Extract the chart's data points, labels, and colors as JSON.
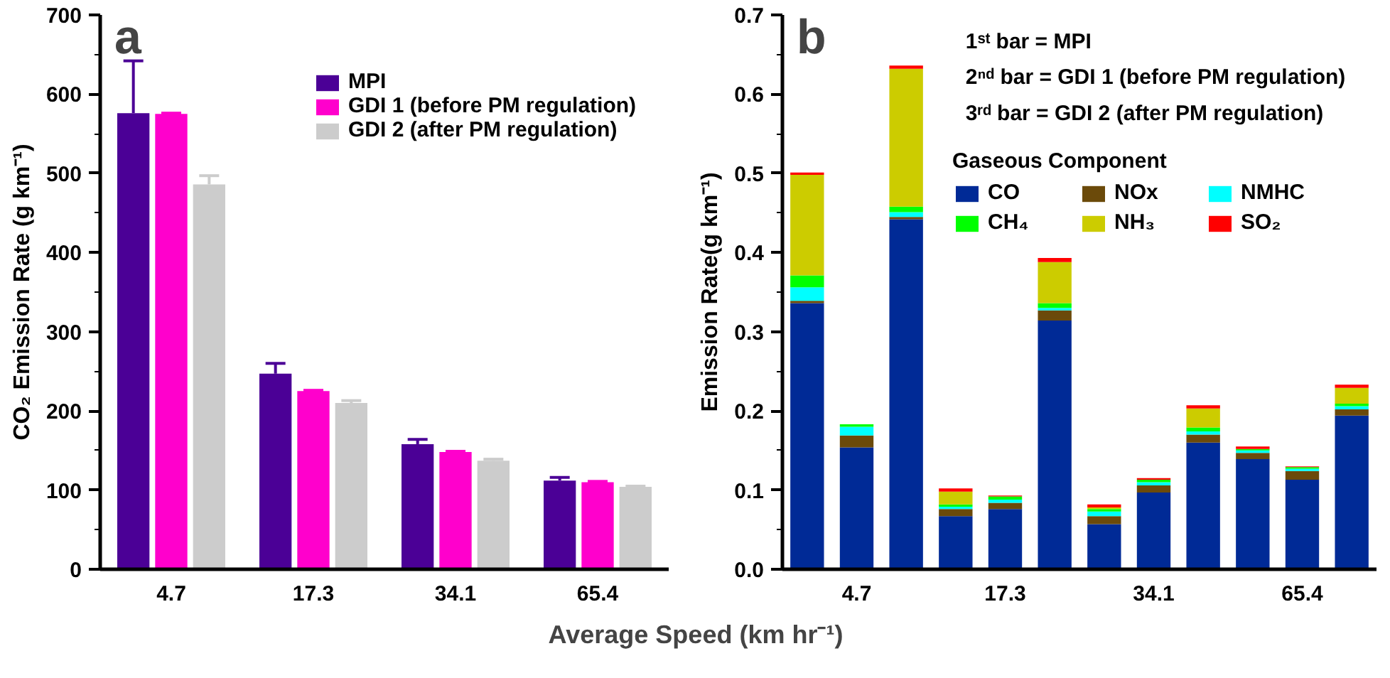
{
  "chart_data": [
    {
      "type": "bar",
      "title": "a",
      "xlabel": "Average Speed (km hr⁻¹)",
      "ylabel": "CO₂ Emission Rate (g km⁻¹)",
      "categories": [
        "4.7",
        "17.3",
        "34.1",
        "65.4"
      ],
      "series": [
        {
          "name": "MPI",
          "color": "#4b0096",
          "values": [
            576,
            247,
            158,
            112
          ],
          "errors": [
            [
              576,
              642
            ],
            [
              247,
              260
            ],
            [
              158,
              164
            ],
            [
              112,
              116
            ]
          ]
        },
        {
          "name": "GDI 1 (before PM regulation)",
          "color": "#ff00cc",
          "values": [
            575,
            225,
            148,
            110
          ],
          "errors": [
            [
              575,
              576
            ],
            [
              225,
              226
            ],
            [
              148,
              149
            ],
            [
              110,
              111
            ]
          ]
        },
        {
          "name": "GDI 2 (after PM regulation)",
          "color": "#cccccc",
          "values": [
            486,
            210,
            137,
            104
          ],
          "errors": [
            [
              486,
              497
            ],
            [
              210,
              213
            ],
            [
              137,
              139
            ],
            [
              104,
              105
            ]
          ]
        }
      ],
      "ylim": [
        0,
        700
      ],
      "yticks": [
        0,
        100,
        200,
        300,
        400,
        500,
        600,
        700
      ],
      "grid": false,
      "legend": "top right"
    },
    {
      "type": "bar",
      "stacked": true,
      "title": "b",
      "ylabel": "Emission Rate(g km⁻¹)",
      "legend_title": "Gaseous Component",
      "annotations": [
        "1ˢᵗ bar = MPI",
        "2ⁿᵈ bar = GDI 1 (before PM regulation)",
        "3ʳᵈ bar = GDI 2 (after PM regulation)"
      ],
      "categories": [
        null,
        "4.7",
        null,
        null,
        "17.3",
        null,
        null,
        "34.1",
        null,
        null,
        "65.4",
        null
      ],
      "series": [
        {
          "name": "CO",
          "color": "#002a96",
          "values": [
            0.336,
            0.154,
            0.442,
            0.067,
            0.076,
            0.314,
            0.057,
            0.097,
            0.16,
            0.139,
            0.113,
            0.194
          ]
        },
        {
          "name": "NOx",
          "color": "#6b4a0a",
          "values": [
            0.003,
            0.015,
            0.003,
            0.009,
            0.008,
            0.013,
            0.01,
            0.009,
            0.01,
            0.008,
            0.011,
            0.008
          ]
        },
        {
          "name": "NMHC",
          "color": "#00ffff",
          "values": [
            0.017,
            0.011,
            0.006,
            0.003,
            0.004,
            0.003,
            0.006,
            0.004,
            0.004,
            0.003,
            0.003,
            0.004
          ]
        },
        {
          "name": "CH₄",
          "color": "#00ff00",
          "values": [
            0.015,
            0.003,
            0.007,
            0.003,
            0.004,
            0.006,
            0.003,
            0.003,
            0.005,
            0.002,
            0.002,
            0.003
          ]
        },
        {
          "name": "NH₃",
          "color": "#cccc00",
          "values": [
            0.127,
            0,
            0.174,
            0.016,
            0,
            0.052,
            0.002,
            0,
            0.024,
            0,
            0,
            0.02
          ]
        },
        {
          "name": "SO₂",
          "color": "#ff0000",
          "values": [
            0.003,
            0,
            0.004,
            0.004,
            0.001,
            0.005,
            0.004,
            0.002,
            0.004,
            0.003,
            0.001,
            0.004
          ]
        }
      ],
      "ylim": [
        0,
        0.7
      ],
      "yticks": [
        {
          "value": 0,
          "label": "0.0"
        },
        0.1,
        0.2,
        0.3,
        0.4,
        0.5,
        0.6,
        0.7
      ],
      "grid": false,
      "legend": "top right"
    }
  ]
}
